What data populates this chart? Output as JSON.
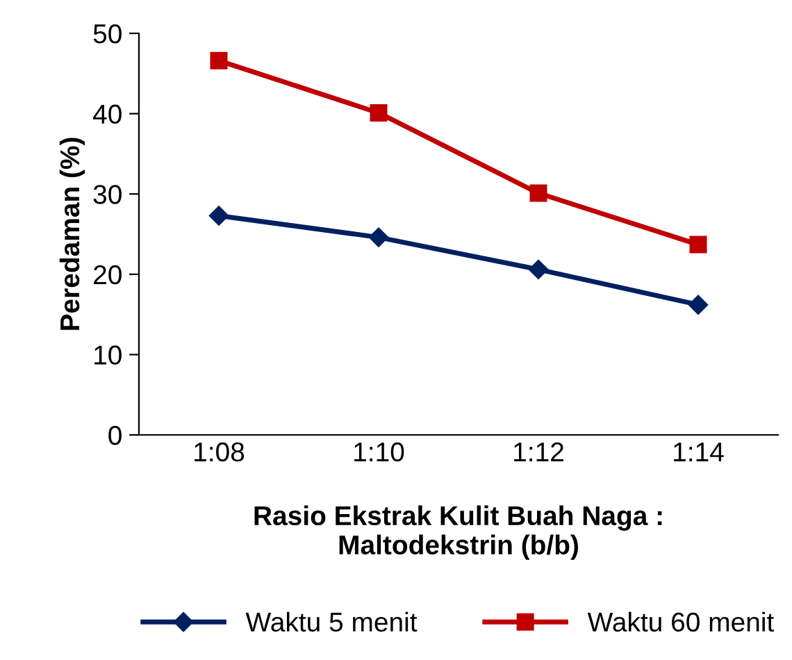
{
  "chart_data": {
    "type": "line",
    "xlabel": "Rasio Ekstrak Kulit Buah Naga :\nMaltodekstrin (b/b)",
    "ylabel": "Peredaman (%)",
    "categories": [
      "1:08",
      "1:10",
      "1:12",
      "1:14"
    ],
    "series": [
      {
        "name": "Waktu 5 menit",
        "color": "#002060",
        "marker": "diamond",
        "values": [
          27.3,
          24.6,
          20.6,
          16.2
        ]
      },
      {
        "name": "Waktu 60 menit",
        "color": "#c00000",
        "marker": "square",
        "values": [
          46.6,
          40.1,
          30.1,
          23.7
        ]
      }
    ],
    "ylim": [
      0,
      50
    ],
    "yticks": [
      0,
      10,
      20,
      30,
      40,
      50
    ],
    "grid": false,
    "legend": "bottom",
    "line_style": "solid"
  }
}
